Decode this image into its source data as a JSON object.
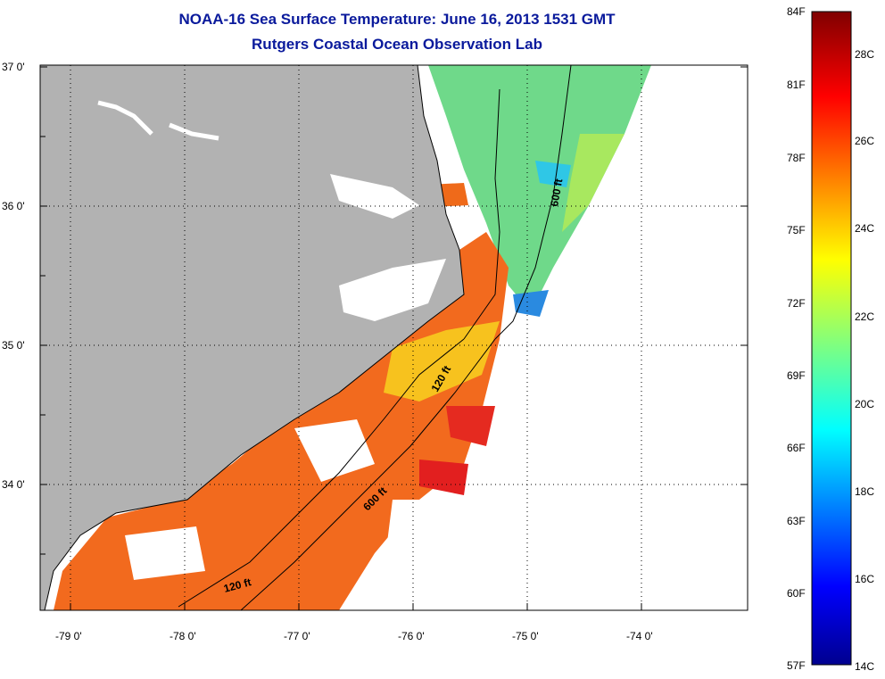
{
  "title": "NOAA-16 Sea Surface Temperature:  June 16, 2013 1531 GMT",
  "subtitle": "Rutgers Coastal Ocean Observation Lab",
  "lat_labels": [
    "37 0'",
    "36 0'",
    "35 0'",
    "34 0'"
  ],
  "lon_labels": [
    "-79 0'",
    "-78 0'",
    "-77 0'",
    "-76 0'",
    "-75 0'",
    "-74 0'"
  ],
  "isobath_labels": [
    "600 ft",
    "120 ft",
    "600 ft",
    "120 ft"
  ],
  "colorbar": {
    "f_labels": [
      "84F",
      "81F",
      "78F",
      "75F",
      "72F",
      "69F",
      "66F",
      "63F",
      "60F",
      "57F"
    ],
    "c_labels": [
      "28C",
      "26C",
      "24C",
      "22C",
      "20C",
      "18C",
      "16C",
      "14C"
    ],
    "range_c": [
      14,
      29
    ]
  },
  "colors": {
    "land": "#b2b2b2",
    "title": "#0a1a9c",
    "grid": "#000000"
  }
}
